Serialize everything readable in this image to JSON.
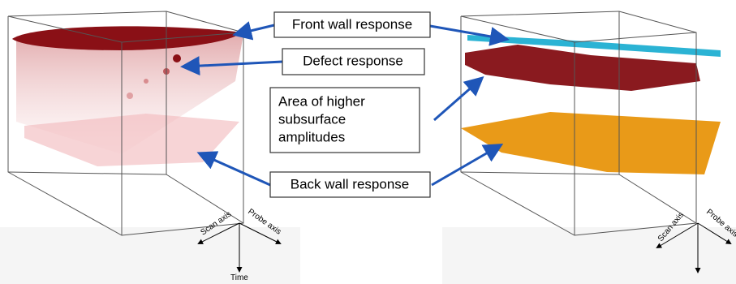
{
  "callouts": [
    {
      "text": "Front wall response"
    },
    {
      "text": "Defect response"
    },
    {
      "lines": [
        "Area of higher",
        "subsurface",
        "amplitudes"
      ]
    },
    {
      "text": "Back wall response"
    }
  ],
  "left_axes": {
    "scan": "Scan axis",
    "probe": "Probe axis",
    "time": "Time"
  },
  "right_axes": {
    "scan": "Scan axis",
    "probe": "Probe axis"
  }
}
